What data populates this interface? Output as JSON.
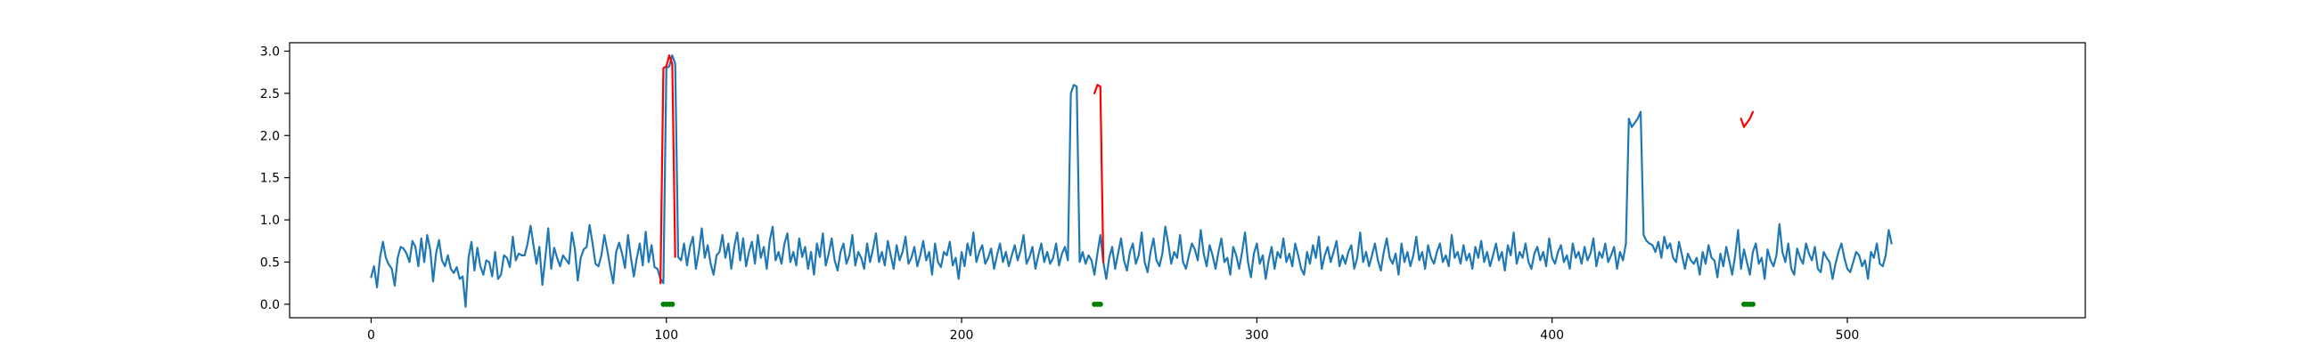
{
  "chart_data": {
    "type": "line",
    "title": "",
    "xlabel": "",
    "ylabel": "",
    "xlim": [
      -27.6,
      580.6
    ],
    "ylim": [
      -0.16,
      3.1
    ],
    "grid": false,
    "legend": "none",
    "x_ticks": [
      0,
      100,
      200,
      300,
      400,
      500
    ],
    "x_tick_labels": [
      "0",
      "100",
      "200",
      "300",
      "400",
      "500"
    ],
    "y_ticks": [
      0.0,
      0.5,
      1.0,
      1.5,
      2.0,
      2.5,
      3.0
    ],
    "y_tick_labels": [
      "0.0",
      "0.5",
      "1.0",
      "1.5",
      "2.0",
      "2.5",
      "3.0"
    ],
    "series": [
      {
        "color": "#1f77b4",
        "style": "line",
        "x_start": 0,
        "values": [
          0.32,
          0.45,
          0.2,
          0.55,
          0.74,
          0.55,
          0.47,
          0.42,
          0.22,
          0.55,
          0.68,
          0.66,
          0.6,
          0.5,
          0.75,
          0.68,
          0.45,
          0.78,
          0.5,
          0.82,
          0.65,
          0.27,
          0.6,
          0.76,
          0.52,
          0.45,
          0.58,
          0.42,
          0.37,
          0.44,
          0.3,
          0.33,
          -0.03,
          0.55,
          0.74,
          0.4,
          0.67,
          0.45,
          0.35,
          0.52,
          0.5,
          0.33,
          0.62,
          0.3,
          0.35,
          0.58,
          0.55,
          0.44,
          0.8,
          0.52,
          0.6,
          0.58,
          0.58,
          0.72,
          0.93,
          0.7,
          0.48,
          0.68,
          0.23,
          0.55,
          0.9,
          0.42,
          0.67,
          0.55,
          0.45,
          0.58,
          0.53,
          0.48,
          0.85,
          0.66,
          0.28,
          0.55,
          0.65,
          0.68,
          0.94,
          0.72,
          0.48,
          0.45,
          0.58,
          0.82,
          0.64,
          0.43,
          0.25,
          0.62,
          0.73,
          0.6,
          0.43,
          0.82,
          0.55,
          0.33,
          0.55,
          0.72,
          0.46,
          0.86,
          0.5,
          0.7,
          0.44,
          0.42,
          0.3,
          0.25,
          2.8,
          2.82,
          2.95,
          2.85,
          0.56,
          0.52,
          0.72,
          0.46,
          0.68,
          0.8,
          0.42,
          0.62,
          0.9,
          0.55,
          0.7,
          0.48,
          0.35,
          0.58,
          0.62,
          0.82,
          0.55,
          0.72,
          0.42,
          0.68,
          0.85,
          0.52,
          0.78,
          0.45,
          0.62,
          0.74,
          0.48,
          0.82,
          0.55,
          0.68,
          0.42,
          0.75,
          0.92,
          0.52,
          0.62,
          0.48,
          0.72,
          0.84,
          0.5,
          0.62,
          0.46,
          0.78,
          0.56,
          0.68,
          0.42,
          0.62,
          0.35,
          0.72,
          0.56,
          0.84,
          0.46,
          0.6,
          0.78,
          0.52,
          0.4,
          0.62,
          0.72,
          0.48,
          0.58,
          0.82,
          0.46,
          0.62,
          0.55,
          0.42,
          0.72,
          0.5,
          0.66,
          0.84,
          0.5,
          0.62,
          0.46,
          0.75,
          0.58,
          0.42,
          0.7,
          0.52,
          0.62,
          0.8,
          0.48,
          0.55,
          0.68,
          0.45,
          0.58,
          0.75,
          0.52,
          0.62,
          0.35,
          0.72,
          0.5,
          0.44,
          0.62,
          0.58,
          0.74,
          0.46,
          0.55,
          0.3,
          0.62,
          0.45,
          0.72,
          0.58,
          0.85,
          0.5,
          0.62,
          0.7,
          0.48,
          0.55,
          0.66,
          0.42,
          0.58,
          0.72,
          0.5,
          0.62,
          0.45,
          0.58,
          0.7,
          0.52,
          0.64,
          0.82,
          0.48,
          0.56,
          0.68,
          0.42,
          0.58,
          0.72,
          0.5,
          0.62,
          0.48,
          0.55,
          0.72,
          0.46,
          0.6,
          0.68,
          0.52,
          2.5,
          2.6,
          2.58,
          0.5,
          0.62,
          0.48,
          0.58,
          0.52,
          0.35,
          0.6,
          0.82,
          0.5,
          0.3,
          0.55,
          0.68,
          0.42,
          0.6,
          0.78,
          0.52,
          0.4,
          0.62,
          0.72,
          0.48,
          0.58,
          0.85,
          0.5,
          0.38,
          0.62,
          0.78,
          0.52,
          0.45,
          0.6,
          0.92,
          0.72,
          0.48,
          0.62,
          0.55,
          0.82,
          0.5,
          0.42,
          0.58,
          0.72,
          0.65,
          0.52,
          0.88,
          0.6,
          0.45,
          0.7,
          0.58,
          0.42,
          0.62,
          0.78,
          0.5,
          0.55,
          0.35,
          0.68,
          0.58,
          0.42,
          0.62,
          0.85,
          0.5,
          0.32,
          0.6,
          0.72,
          0.48,
          0.58,
          0.3,
          0.52,
          0.68,
          0.42,
          0.62,
          0.55,
          0.78,
          0.5,
          0.6,
          0.45,
          0.72,
          0.58,
          0.42,
          0.35,
          0.62,
          0.48,
          0.7,
          0.55,
          0.8,
          0.42,
          0.58,
          0.68,
          0.5,
          0.62,
          0.75,
          0.45,
          0.58,
          0.48,
          0.62,
          0.7,
          0.42,
          0.55,
          0.85,
          0.5,
          0.62,
          0.45,
          0.58,
          0.72,
          0.52,
          0.4,
          0.62,
          0.78,
          0.55,
          0.48,
          0.6,
          0.35,
          0.72,
          0.5,
          0.62,
          0.45,
          0.58,
          0.8,
          0.52,
          0.62,
          0.42,
          0.7,
          0.55,
          0.48,
          0.62,
          0.72,
          0.5,
          0.58,
          0.45,
          0.82,
          0.55,
          0.62,
          0.48,
          0.7,
          0.52,
          0.6,
          0.42,
          0.68,
          0.55,
          0.75,
          0.5,
          0.62,
          0.45,
          0.58,
          0.72,
          0.52,
          0.62,
          0.4,
          0.7,
          0.58,
          0.85,
          0.48,
          0.62,
          0.55,
          0.72,
          0.5,
          0.42,
          0.6,
          0.68,
          0.52,
          0.62,
          0.45,
          0.78,
          0.55,
          0.48,
          0.62,
          0.7,
          0.5,
          0.58,
          0.42,
          0.72,
          0.55,
          0.62,
          0.48,
          0.68,
          0.52,
          0.6,
          0.78,
          0.45,
          0.62,
          0.55,
          0.72,
          0.5,
          0.58,
          0.68,
          0.42,
          0.62,
          0.52,
          0.72,
          2.2,
          2.1,
          2.15,
          2.2,
          2.28,
          0.82,
          0.75,
          0.72,
          0.7,
          0.62,
          0.74,
          0.55,
          0.8,
          0.66,
          0.72,
          0.55,
          0.5,
          0.74,
          0.58,
          0.42,
          0.6,
          0.52,
          0.48,
          0.55,
          0.35,
          0.62,
          0.48,
          0.7,
          0.55,
          0.52,
          0.32,
          0.6,
          0.45,
          0.68,
          0.52,
          0.35,
          0.58,
          0.88,
          0.42,
          0.65,
          0.5,
          0.35,
          0.62,
          0.72,
          0.48,
          0.55,
          0.3,
          0.65,
          0.52,
          0.45,
          0.58,
          0.95,
          0.62,
          0.5,
          0.72,
          0.42,
          0.35,
          0.66,
          0.55,
          0.48,
          0.72,
          0.6,
          0.52,
          0.68,
          0.42,
          0.38,
          0.62,
          0.55,
          0.5,
          0.3,
          0.48,
          0.62,
          0.72,
          0.55,
          0.42,
          0.38,
          0.5,
          0.62,
          0.58,
          0.45,
          0.52,
          0.3,
          0.62,
          0.55,
          0.72,
          0.48,
          0.45,
          0.58,
          0.88,
          0.72
        ]
      },
      {
        "color": "#ff0000",
        "style": "line",
        "x": [
          98,
          99,
          100,
          101,
          102,
          103
        ],
        "values": [
          0.25,
          2.8,
          2.82,
          2.95,
          2.85,
          0.56
        ]
      },
      {
        "color": "#ff0000",
        "style": "line",
        "x": [
          245,
          246,
          247,
          248
        ],
        "values": [
          2.5,
          2.6,
          2.58,
          0.5
        ]
      },
      {
        "color": "#ff0000",
        "style": "line",
        "x": [
          464,
          465,
          466,
          467,
          468
        ],
        "values": [
          2.2,
          2.1,
          2.15,
          2.2,
          2.28
        ]
      },
      {
        "color": "#008000",
        "style": "markers",
        "x": [
          99,
          100,
          101,
          102,
          245,
          246,
          247,
          465,
          466,
          467,
          468
        ],
        "values": [
          0,
          0,
          0,
          0,
          0,
          0,
          0,
          0,
          0,
          0,
          0
        ]
      }
    ]
  }
}
